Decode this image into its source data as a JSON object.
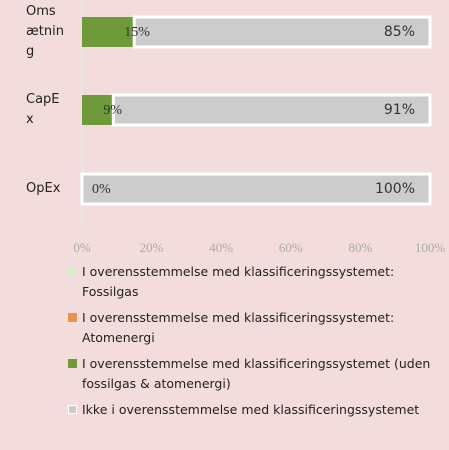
{
  "chart_data": {
    "type": "stacked_bar_horizontal",
    "categories": [
      "Omsætning",
      "CapEx",
      "OpEx"
    ],
    "series": [
      {
        "name": "I overensstemmelse med klassificeringssystemet: Fossilgas",
        "color": "#dcebc4",
        "values": [
          0,
          0,
          0
        ]
      },
      {
        "name": "I overensstemmelse med klassificeringssystemet: Atomenergi",
        "color": "#ee8f4c",
        "values": [
          0,
          0,
          0
        ]
      },
      {
        "name": "I overensstemmelse med klassificeringssystemet (uden fossilgas & atomenergi)",
        "color": "#6f9a3a",
        "values": [
          15,
          9,
          0
        ],
        "value_labels": [
          "15%",
          "9%",
          "0%"
        ]
      },
      {
        "name": "Ikke i overensstemmelse med klassificeringssystemet",
        "color": "#cccccc",
        "values": [
          85,
          91,
          100
        ],
        "value_labels": [
          "85%",
          "91%",
          "100%"
        ]
      }
    ],
    "xlim": [
      0,
      100
    ],
    "xticks": [
      {
        "value": 0,
        "label": "0%"
      },
      {
        "value": 20,
        "label": "20%"
      },
      {
        "value": 40,
        "label": "40%"
      },
      {
        "value": 60,
        "label": "60%"
      },
      {
        "value": 80,
        "label": "80%"
      },
      {
        "value": 100,
        "label": "100%"
      }
    ],
    "legend": "bottom"
  }
}
